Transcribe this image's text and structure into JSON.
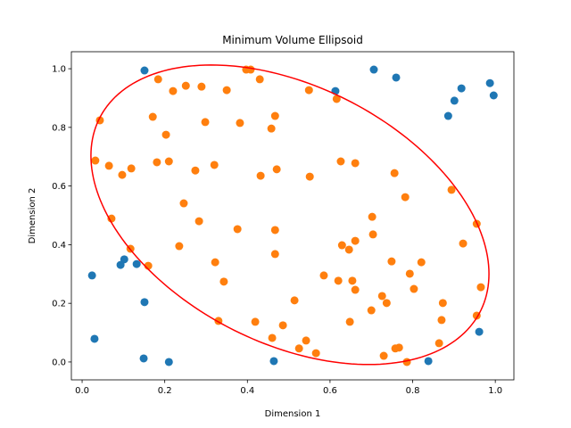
{
  "chart_data": {
    "type": "scatter",
    "title": "Minimum Volume Ellipsoid",
    "xlabel": "Dimension 1",
    "ylabel": "Dimension 2",
    "xlim": [
      -0.026,
      1.045
    ],
    "ylim": [
      -0.061,
      1.058
    ],
    "xticks": [
      "0.0",
      "0.2",
      "0.4",
      "0.6",
      "0.8",
      "1.0"
    ],
    "yticks": [
      "0.0",
      "0.2",
      "0.4",
      "0.6",
      "0.8",
      "1.0"
    ],
    "grid": false,
    "colors": {
      "outside": "#1f77b4",
      "inside": "#ff7f0e",
      "ellipse": "#ff0000"
    },
    "series": [
      {
        "color": "#1f77b4",
        "points": [
          [
            0.151,
            0.994
          ],
          [
            0.706,
            0.997
          ],
          [
            0.76,
            0.97
          ],
          [
            0.613,
            0.924
          ],
          [
            0.918,
            0.933
          ],
          [
            0.901,
            0.891
          ],
          [
            0.886,
            0.839
          ],
          [
            0.987,
            0.951
          ],
          [
            0.996,
            0.909
          ],
          [
            0.024,
            0.295
          ],
          [
            0.03,
            0.079
          ],
          [
            0.102,
            0.35
          ],
          [
            0.093,
            0.331
          ],
          [
            0.132,
            0.334
          ],
          [
            0.151,
            0.204
          ],
          [
            0.149,
            0.012
          ],
          [
            0.21,
            0.0
          ],
          [
            0.464,
            0.003
          ],
          [
            0.838,
            0.003
          ],
          [
            0.961,
            0.103
          ]
        ]
      },
      {
        "color": "#ff7f0e",
        "points": [
          [
            0.184,
            0.964
          ],
          [
            0.22,
            0.924
          ],
          [
            0.251,
            0.942
          ],
          [
            0.289,
            0.939
          ],
          [
            0.35,
            0.927
          ],
          [
            0.397,
            0.997
          ],
          [
            0.408,
            0.997
          ],
          [
            0.43,
            0.964
          ],
          [
            0.043,
            0.824
          ],
          [
            0.171,
            0.836
          ],
          [
            0.298,
            0.818
          ],
          [
            0.382,
            0.815
          ],
          [
            0.467,
            0.839
          ],
          [
            0.458,
            0.796
          ],
          [
            0.203,
            0.775
          ],
          [
            0.032,
            0.687
          ],
          [
            0.065,
            0.669
          ],
          [
            0.097,
            0.638
          ],
          [
            0.119,
            0.66
          ],
          [
            0.181,
            0.681
          ],
          [
            0.21,
            0.684
          ],
          [
            0.274,
            0.653
          ],
          [
            0.32,
            0.672
          ],
          [
            0.432,
            0.635
          ],
          [
            0.471,
            0.657
          ],
          [
            0.246,
            0.541
          ],
          [
            0.071,
            0.489
          ],
          [
            0.283,
            0.48
          ],
          [
            0.376,
            0.453
          ],
          [
            0.467,
            0.45
          ],
          [
            0.235,
            0.395
          ],
          [
            0.117,
            0.386
          ],
          [
            0.467,
            0.368
          ],
          [
            0.322,
            0.34
          ],
          [
            0.16,
            0.328
          ],
          [
            0.343,
            0.274
          ],
          [
            0.514,
            0.21
          ],
          [
            0.33,
            0.14
          ],
          [
            0.419,
            0.137
          ],
          [
            0.486,
            0.125
          ],
          [
            0.46,
            0.082
          ],
          [
            0.549,
            0.927
          ],
          [
            0.616,
            0.897
          ],
          [
            0.626,
            0.684
          ],
          [
            0.661,
            0.678
          ],
          [
            0.551,
            0.632
          ],
          [
            0.756,
            0.644
          ],
          [
            0.782,
            0.562
          ],
          [
            0.894,
            0.587
          ],
          [
            0.702,
            0.495
          ],
          [
            0.955,
            0.471
          ],
          [
            0.704,
            0.435
          ],
          [
            0.629,
            0.398
          ],
          [
            0.661,
            0.413
          ],
          [
            0.646,
            0.383
          ],
          [
            0.922,
            0.404
          ],
          [
            0.749,
            0.343
          ],
          [
            0.821,
            0.34
          ],
          [
            0.585,
            0.295
          ],
          [
            0.62,
            0.277
          ],
          [
            0.654,
            0.277
          ],
          [
            0.661,
            0.246
          ],
          [
            0.793,
            0.301
          ],
          [
            0.803,
            0.249
          ],
          [
            0.965,
            0.255
          ],
          [
            0.726,
            0.225
          ],
          [
            0.737,
            0.201
          ],
          [
            0.873,
            0.201
          ],
          [
            0.7,
            0.176
          ],
          [
            0.648,
            0.137
          ],
          [
            0.87,
            0.143
          ],
          [
            0.955,
            0.158
          ],
          [
            0.542,
            0.073
          ],
          [
            0.525,
            0.046
          ],
          [
            0.566,
            0.03
          ],
          [
            0.758,
            0.046
          ],
          [
            0.767,
            0.049
          ],
          [
            0.864,
            0.064
          ],
          [
            0.73,
            0.021
          ],
          [
            0.786,
            0.0
          ]
        ]
      }
    ],
    "ellipse": {
      "center": [
        0.503,
        0.502
      ],
      "shape_matrix": [
        [
          0.232,
          -0.0971
        ],
        [
          -0.0971,
          0.2608
        ]
      ],
      "color": "#ff0000"
    }
  }
}
